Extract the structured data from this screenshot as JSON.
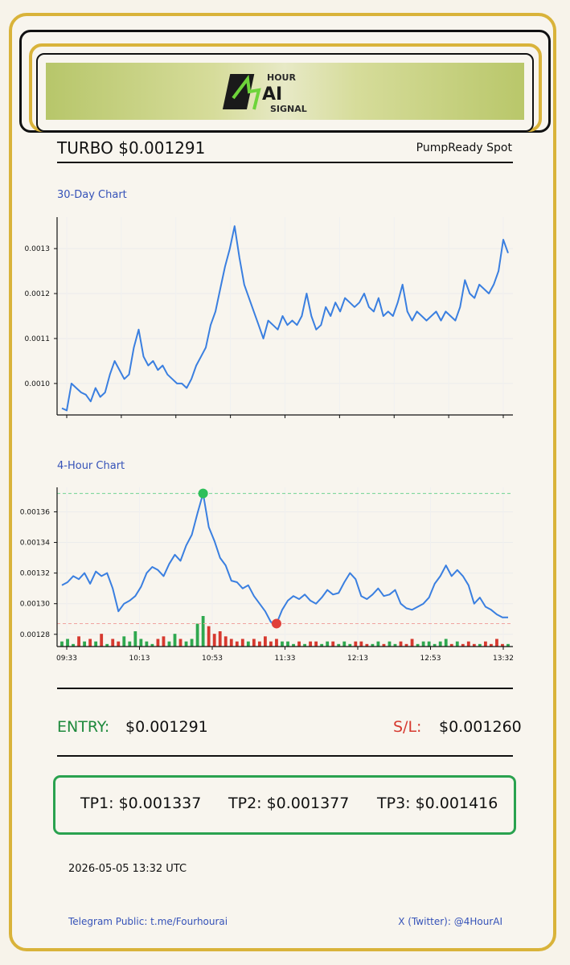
{
  "banner": {
    "logo_text_top": "HOUR",
    "logo_letters": "4AI",
    "logo_text_bottom": "SIGNAL"
  },
  "header": {
    "title": "TURBO $0.001291",
    "right_label": "PumpReady Spot"
  },
  "chart_30d": {
    "label": "30-Day Chart"
  },
  "chart_4h": {
    "label": "4-Hour Chart"
  },
  "signal": {
    "entry_label": "ENTRY:",
    "entry_value": "$0.001291",
    "sl_label": "S/L:",
    "sl_value": "$0.001260",
    "tp1": "TP1: $0.001337",
    "tp2": "TP2: $0.001377",
    "tp3": "TP3: $0.001416"
  },
  "timestamp": "2026-05-05 13:32 UTC",
  "footer": {
    "telegram": "Telegram Public: t.me/Fourhourai",
    "twitter": "X (Twitter): @4HourAI"
  },
  "colors": {
    "gold": "#d9b33a",
    "line": "#3a7fe0",
    "green": "#2aa24f",
    "red": "#d6392f",
    "label_blue": "#3552b8"
  },
  "chart_data": [
    {
      "type": "line",
      "title": "30-Day Chart",
      "ylim": [
        0.00093,
        0.00137
      ],
      "yticks": [
        0.001,
        0.0011,
        0.0012,
        0.0013
      ],
      "ytick_labels": [
        "0.0010",
        "0.0011",
        "0.0012",
        "0.0013"
      ],
      "grid": true,
      "series": [
        {
          "values": [
            0.000945,
            0.00094,
            0.001,
            0.00099,
            0.00098,
            0.000975,
            0.00096,
            0.00099,
            0.00097,
            0.00098,
            0.00102,
            0.00105,
            0.00103,
            0.00101,
            0.00102,
            0.00108,
            0.00112,
            0.00106,
            0.00104,
            0.00105,
            0.00103,
            0.00104,
            0.00102,
            0.00101,
            0.001,
            0.001,
            0.00099,
            0.00101,
            0.00104,
            0.00106,
            0.00108,
            0.00113,
            0.00116,
            0.00121,
            0.00126,
            0.0013,
            0.00135,
            0.00128,
            0.00122,
            0.00119,
            0.00116,
            0.00113,
            0.0011,
            0.00114,
            0.00113,
            0.00112,
            0.00115,
            0.00113,
            0.00114,
            0.00113,
            0.00115,
            0.0012,
            0.00115,
            0.00112,
            0.00113,
            0.00117,
            0.00115,
            0.00118,
            0.00116,
            0.00119,
            0.00118,
            0.00117,
            0.00118,
            0.0012,
            0.00117,
            0.00116,
            0.00119,
            0.00115,
            0.00116,
            0.00115,
            0.00118,
            0.00122,
            0.00116,
            0.00114,
            0.00116,
            0.00115,
            0.00114,
            0.00115,
            0.00116,
            0.00114,
            0.00116,
            0.00115,
            0.00114,
            0.00117,
            0.00123,
            0.0012,
            0.00119,
            0.00122,
            0.00121,
            0.0012,
            0.00122,
            0.00125,
            0.00132,
            0.00129
          ]
        }
      ]
    },
    {
      "type": "line",
      "title": "4-Hour Chart",
      "ylim": [
        0.001272,
        0.001376
      ],
      "yticks": [
        0.00128,
        0.0013,
        0.00132,
        0.00134,
        0.00136
      ],
      "ytick_labels": [
        "0.00128",
        "0.00130",
        "0.00132",
        "0.00134",
        "0.00136"
      ],
      "x_labels": [
        "09:33",
        "10:13",
        "10:53",
        "11:33",
        "12:13",
        "12:53",
        "13:32"
      ],
      "grid": true,
      "high_marker": {
        "value": 0.001372,
        "color": "#2fbf5a"
      },
      "low_marker": {
        "value": 0.001287,
        "color": "#e0403a"
      },
      "series": [
        {
          "values": [
            0.001312,
            0.001314,
            0.001318,
            0.001316,
            0.00132,
            0.001313,
            0.001321,
            0.001318,
            0.00132,
            0.00131,
            0.001295,
            0.0013,
            0.001302,
            0.001305,
            0.001311,
            0.00132,
            0.001324,
            0.001322,
            0.001318,
            0.001326,
            0.001332,
            0.001328,
            0.001338,
            0.001345,
            0.001359,
            0.001372,
            0.00135,
            0.001341,
            0.00133,
            0.001325,
            0.001315,
            0.001314,
            0.00131,
            0.001312,
            0.001305,
            0.0013,
            0.001295,
            0.001288,
            0.001287,
            0.001296,
            0.001302,
            0.001305,
            0.001303,
            0.001306,
            0.001302,
            0.0013,
            0.001304,
            0.001309,
            0.001306,
            0.001307,
            0.001314,
            0.00132,
            0.001316,
            0.001305,
            0.001303,
            0.001306,
            0.00131,
            0.001305,
            0.001306,
            0.001309,
            0.0013,
            0.001297,
            0.001296,
            0.001298,
            0.0013,
            0.001304,
            0.001313,
            0.001318,
            0.001325,
            0.001318,
            0.001322,
            0.001318,
            0.001312,
            0.0013,
            0.001304,
            0.001298,
            0.001296,
            0.001293,
            0.001291,
            0.001291
          ]
        }
      ],
      "volume": {
        "values": [
          2,
          3,
          1,
          4,
          2,
          3,
          2,
          5,
          1,
          3,
          2,
          4,
          2,
          6,
          3,
          2,
          1,
          3,
          4,
          2,
          5,
          3,
          2,
          3,
          9,
          12,
          8,
          5,
          6,
          4,
          3,
          2,
          3,
          2,
          3,
          2,
          4,
          2,
          3,
          2,
          2,
          1,
          2,
          1,
          2,
          2,
          1,
          2,
          2,
          1,
          2,
          1,
          2,
          2,
          1,
          1,
          2,
          1,
          2,
          1,
          2,
          1,
          3,
          1,
          2,
          2,
          1,
          2,
          3,
          1,
          2,
          1,
          2,
          1,
          1,
          2,
          1,
          3,
          1,
          1
        ],
        "up_color": "#2fa84f",
        "down_color": "#d6392f"
      }
    }
  ]
}
